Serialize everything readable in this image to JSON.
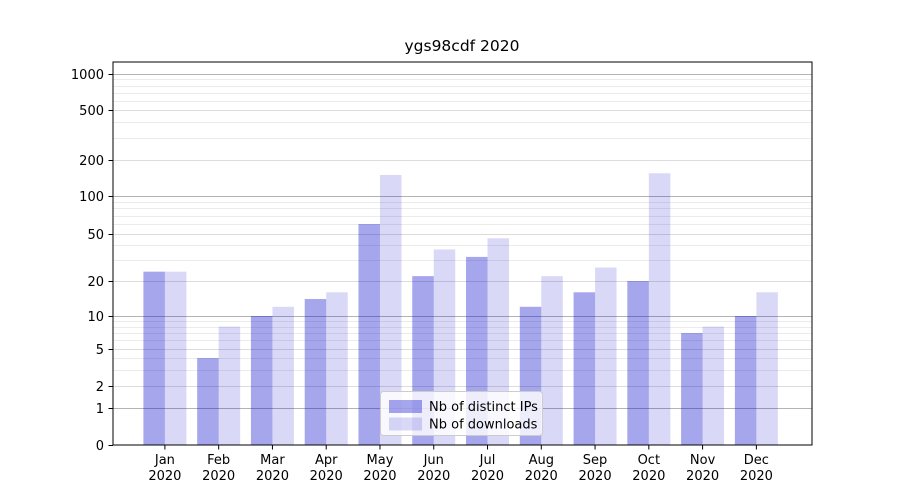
{
  "chart_data": {
    "type": "bar",
    "title": "ygs98cdf 2020",
    "categories": [
      "Jan",
      "Feb",
      "Mar",
      "Apr",
      "May",
      "Jun",
      "Jul",
      "Aug",
      "Sep",
      "Oct",
      "Nov",
      "Dec"
    ],
    "year_label": "2020",
    "series": [
      {
        "name": "Nb of distinct IPs",
        "fill": "rgba(0,0,204,0.35)",
        "solid_hex": "#a6a6ed",
        "values": [
          24,
          4,
          10,
          14,
          60,
          22,
          32,
          12,
          16,
          20,
          7,
          10
        ]
      },
      {
        "name": "Nb of downloads",
        "fill": "rgba(0,0,204,0.15)",
        "solid_hex": "#dadaf7",
        "values": [
          24,
          8,
          12,
          16,
          150,
          37,
          46,
          22,
          26,
          155,
          8,
          16
        ]
      }
    ],
    "yticks": [
      0,
      1,
      2,
      5,
      10,
      20,
      50,
      100,
      200,
      500,
      1000
    ],
    "ylim": [
      0,
      1260
    ],
    "yscale": "symlog",
    "grid": true,
    "legend_position": "lower center",
    "colors": {
      "axis": "#000000",
      "grid_major": "#b3b3b3",
      "grid_mid": "#dcdcdc",
      "grid_minor": "#ebebeb",
      "legend_border": "#cccccc"
    }
  }
}
